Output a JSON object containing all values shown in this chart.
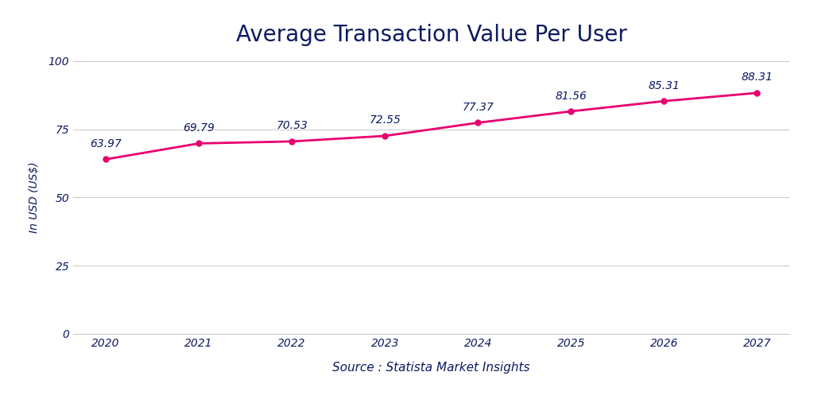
{
  "title": "Average Transaction Value Per User",
  "xlabel": "Source : Statista Market Insights",
  "ylabel": "In USD (US$)",
  "years": [
    2020,
    2021,
    2022,
    2023,
    2024,
    2025,
    2026,
    2027
  ],
  "values": [
    63.97,
    69.79,
    70.53,
    72.55,
    77.37,
    81.56,
    85.31,
    88.31
  ],
  "line_color": "#E8006F",
  "marker_color": "#E8006F",
  "title_color": "#0D1B5E",
  "label_color": "#0D1B5E",
  "tick_color": "#0D1B5E",
  "annotation_color": "#0D1B5E",
  "source_color": "#0D1B5E",
  "background_color": "#FFFFFF",
  "grid_color": "#CCCCCC",
  "ylim": [
    0,
    100
  ],
  "yticks": [
    0,
    25,
    50,
    75,
    100
  ],
  "title_fontsize": 20,
  "ylabel_fontsize": 10,
  "xlabel_fontsize": 11,
  "tick_fontsize": 10,
  "annotation_fontsize": 10
}
